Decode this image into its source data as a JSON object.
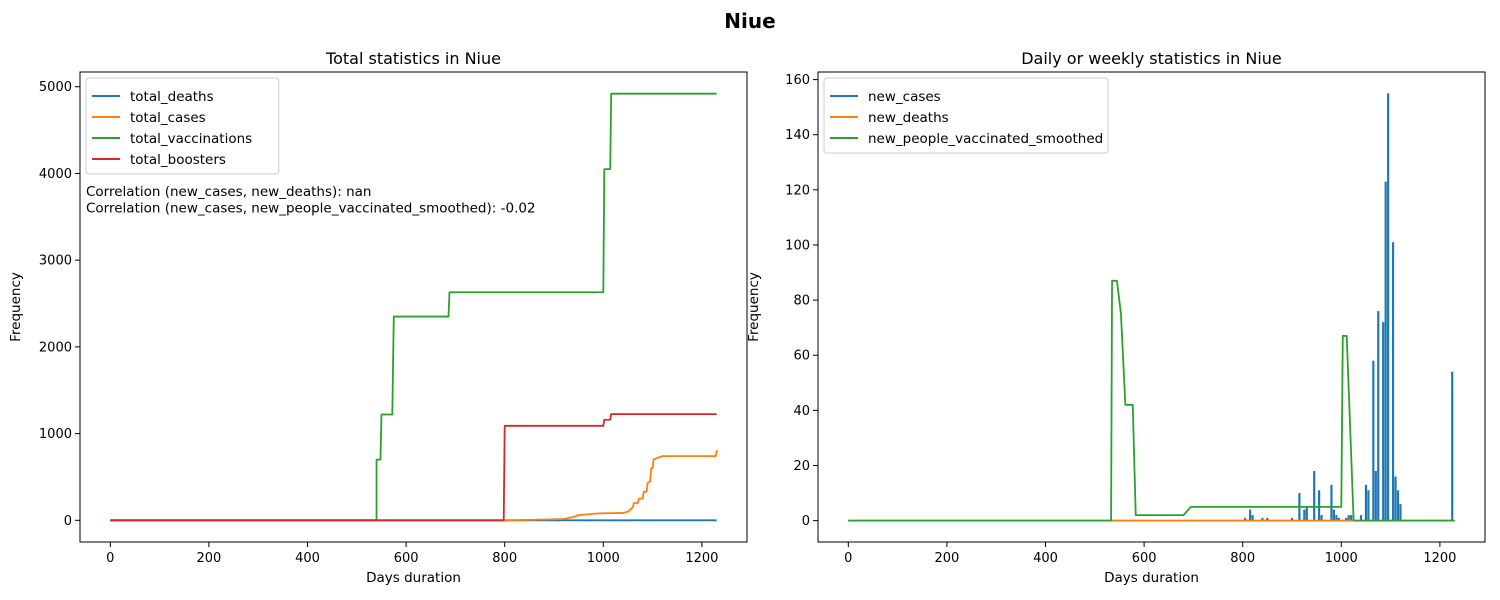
{
  "suptitle": "Niue",
  "chart_data": [
    {
      "type": "line",
      "title": "Total statistics in Niue",
      "xlabel": "Days duration",
      "ylabel": "Frequency",
      "xlim": [
        -61.5,
        1291.5
      ],
      "ylim": [
        -250,
        5170
      ],
      "xticks": [
        0,
        200,
        400,
        600,
        800,
        1000,
        1200
      ],
      "yticks": [
        0,
        1000,
        2000,
        3000,
        4000,
        5000
      ],
      "legend_position": "upper left",
      "annotations": [
        "Correlation (new_cases, new_deaths): nan",
        "Correlation (new_cases, new_people_vaccinated_smoothed): -0.02"
      ],
      "series": [
        {
          "name": "total_deaths",
          "color": "#1f77b4",
          "points": [
            [
              0,
              0
            ],
            [
              1230,
              0
            ]
          ]
        },
        {
          "name": "total_cases",
          "color": "#ff7f0e",
          "points": [
            [
              0,
              0
            ],
            [
              800,
              0
            ],
            [
              850,
              5
            ],
            [
              920,
              15
            ],
            [
              940,
              40
            ],
            [
              950,
              60
            ],
            [
              970,
              70
            ],
            [
              990,
              80
            ],
            [
              1040,
              85
            ],
            [
              1050,
              100
            ],
            [
              1060,
              150
            ],
            [
              1062,
              200
            ],
            [
              1070,
              200
            ],
            [
              1072,
              250
            ],
            [
              1080,
              250
            ],
            [
              1082,
              330
            ],
            [
              1088,
              330
            ],
            [
              1090,
              430
            ],
            [
              1095,
              450
            ],
            [
              1097,
              600
            ],
            [
              1100,
              600
            ],
            [
              1102,
              700
            ],
            [
              1110,
              720
            ],
            [
              1120,
              740
            ],
            [
              1228,
              740
            ],
            [
              1230,
              800
            ],
            [
              1232,
              800
            ]
          ]
        },
        {
          "name": "total_vaccinations",
          "color": "#2ca02c",
          "points": [
            [
              0,
              0
            ],
            [
              540,
              0
            ],
            [
              540,
              700
            ],
            [
              548,
              700
            ],
            [
              550,
              1220
            ],
            [
              572,
              1220
            ],
            [
              575,
              2350
            ],
            [
              686,
              2350
            ],
            [
              688,
              2630
            ],
            [
              1000,
              2630
            ],
            [
              1002,
              4050
            ],
            [
              1014,
              4050
            ],
            [
              1016,
              4920
            ],
            [
              1230,
              4920
            ]
          ]
        },
        {
          "name": "total_boosters",
          "color": "#d62728",
          "points": [
            [
              0,
              0
            ],
            [
              798,
              0
            ],
            [
              800,
              1090
            ],
            [
              1000,
              1090
            ],
            [
              1002,
              1160
            ],
            [
              1014,
              1160
            ],
            [
              1016,
              1225
            ],
            [
              1230,
              1225
            ]
          ]
        }
      ]
    },
    {
      "type": "line",
      "title": "Daily or weekly statistics in Niue",
      "xlabel": "Days duration",
      "ylabel": "Frequency",
      "xlim": [
        -61.5,
        1291.5
      ],
      "ylim": [
        -7.75,
        162.75
      ],
      "xticks": [
        0,
        200,
        400,
        600,
        800,
        1000,
        1200
      ],
      "yticks": [
        0,
        20,
        40,
        60,
        80,
        100,
        120,
        140,
        160
      ],
      "legend_position": "upper left",
      "series": [
        {
          "name": "new_cases",
          "color": "#1f77b4",
          "spikes": [
            [
              805,
              1
            ],
            [
              815,
              4
            ],
            [
              820,
              2
            ],
            [
              840,
              1
            ],
            [
              850,
              1
            ],
            [
              900,
              1
            ],
            [
              915,
              10
            ],
            [
              925,
              4
            ],
            [
              930,
              5
            ],
            [
              945,
              18
            ],
            [
              955,
              11
            ],
            [
              960,
              2
            ],
            [
              980,
              13
            ],
            [
              985,
              4
            ],
            [
              990,
              2
            ],
            [
              995,
              1
            ],
            [
              1010,
              1
            ],
            [
              1015,
              2
            ],
            [
              1020,
              2
            ],
            [
              1040,
              2
            ],
            [
              1050,
              13
            ],
            [
              1055,
              11
            ],
            [
              1065,
              58
            ],
            [
              1070,
              18
            ],
            [
              1075,
              76
            ],
            [
              1085,
              72
            ],
            [
              1090,
              123
            ],
            [
              1095,
              155
            ],
            [
              1105,
              101
            ],
            [
              1110,
              16
            ],
            [
              1115,
              11
            ],
            [
              1120,
              6
            ],
            [
              1225,
              54
            ]
          ]
        },
        {
          "name": "new_deaths",
          "color": "#ff7f0e",
          "points": [
            [
              0,
              0
            ],
            [
              1230,
              0
            ]
          ]
        },
        {
          "name": "new_people_vaccinated_smoothed",
          "color": "#2ca02c",
          "points": [
            [
              0,
              0
            ],
            [
              533,
              0
            ],
            [
              535,
              87
            ],
            [
              545,
              87
            ],
            [
              553,
              75
            ],
            [
              562,
              42
            ],
            [
              577,
              42
            ],
            [
              583,
              2
            ],
            [
              680,
              2
            ],
            [
              695,
              5
            ],
            [
              1000,
              5
            ],
            [
              1003,
              67
            ],
            [
              1011,
              67
            ],
            [
              1025,
              0
            ],
            [
              1230,
              0
            ]
          ]
        }
      ]
    }
  ]
}
